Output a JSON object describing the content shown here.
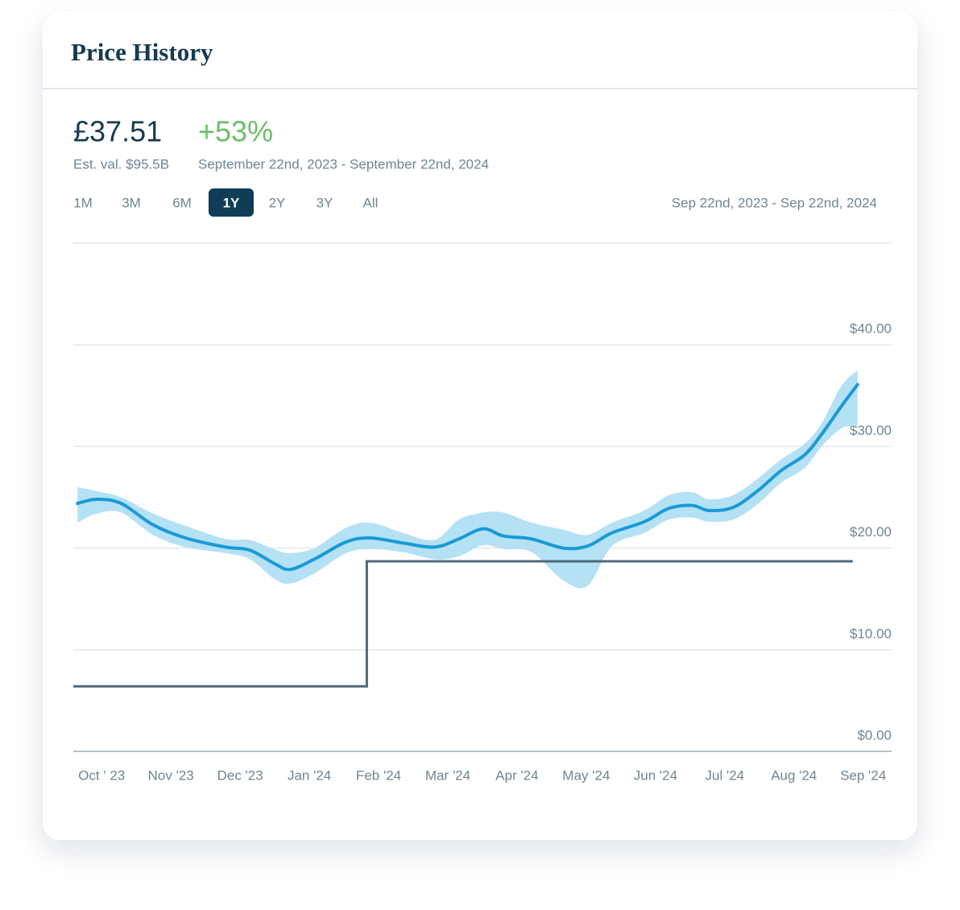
{
  "header": {
    "title": "Price History"
  },
  "summary": {
    "price": "£37.51",
    "change": "+53%",
    "estimate": "Est. val. $95.5B",
    "period": "September 22nd, 2023 - September 22nd, 2024"
  },
  "range_buttons": [
    "1M",
    "3M",
    "6M",
    "1Y",
    "2Y",
    "3Y",
    "All"
  ],
  "active_button": 3,
  "range_label": "Sep 22nd, 2023 - Sep 22nd, 2024",
  "chart_data": {
    "type": "line",
    "xlim": [
      -0.41,
      11.41
    ],
    "xticks": [
      {
        "value": 0,
        "label": "Oct ' 23"
      },
      {
        "value": 1,
        "label": "Nov '23"
      },
      {
        "value": 2,
        "label": "Dec '23"
      },
      {
        "value": 3,
        "label": "Jan '24"
      },
      {
        "value": 4,
        "label": "Feb '24"
      },
      {
        "value": 5,
        "label": "Mar '24"
      },
      {
        "value": 6,
        "label": "Apr '24"
      },
      {
        "value": 7,
        "label": "May '24"
      },
      {
        "value": 8,
        "label": "Jun '24"
      },
      {
        "value": 9,
        "label": "Jul '24"
      },
      {
        "value": 10,
        "label": "Aug '24"
      },
      {
        "value": 11,
        "label": "Sep '24"
      }
    ],
    "ylim": [
      0,
      50
    ],
    "yticks": [
      {
        "value": 0,
        "label": "$0.00"
      },
      {
        "value": 10,
        "label": "$10.00"
      },
      {
        "value": 20,
        "label": "$20.00"
      },
      {
        "value": 30,
        "label": "$30.00"
      },
      {
        "value": 40,
        "label": "$40.00"
      }
    ],
    "grid": true,
    "series": [
      {
        "type": "band",
        "color": "#b5e1f5",
        "x": [
          -0.35,
          -0.07,
          0.28,
          0.74,
          1.21,
          1.79,
          2.14,
          2.49,
          2.72,
          3.07,
          3.53,
          3.88,
          4.35,
          4.81,
          5.16,
          5.51,
          5.8,
          6.21,
          6.67,
          7.02,
          7.37,
          7.84,
          8.19,
          8.53,
          8.77,
          9.12,
          9.47,
          9.81,
          10.16,
          10.4,
          10.69,
          10.92
        ],
        "upper": [
          26.0,
          25.6,
          25.0,
          23.4,
          22.2,
          20.9,
          20.8,
          19.9,
          19.5,
          20.0,
          22.0,
          22.5,
          21.5,
          20.8,
          22.8,
          23.5,
          23.5,
          22.5,
          21.8,
          21.3,
          22.5,
          23.7,
          25.2,
          25.5,
          24.8,
          25.2,
          26.8,
          28.7,
          30.3,
          32.3,
          36.0,
          37.5
        ],
        "lower": [
          22.5,
          23.4,
          23.5,
          21.3,
          20.1,
          19.5,
          18.9,
          17.0,
          16.5,
          17.5,
          19.5,
          19.9,
          19.6,
          18.9,
          19.2,
          20.3,
          19.9,
          19.6,
          16.8,
          16.3,
          20.2,
          21.5,
          22.8,
          23.0,
          22.6,
          22.8,
          24.3,
          26.4,
          27.9,
          30.0,
          31.8,
          32.0
        ]
      },
      {
        "type": "line",
        "color": "#1a9ad6",
        "x": [
          -0.35,
          -0.07,
          0.28,
          0.74,
          1.21,
          1.79,
          2.14,
          2.49,
          2.72,
          3.07,
          3.53,
          3.88,
          4.35,
          4.81,
          5.16,
          5.51,
          5.8,
          6.21,
          6.67,
          7.02,
          7.37,
          7.84,
          8.19,
          8.53,
          8.77,
          9.12,
          9.47,
          9.81,
          10.16,
          10.4,
          10.69,
          10.92
        ],
        "values": [
          24.4,
          24.8,
          24.4,
          22.3,
          21.0,
          20.1,
          19.8,
          18.5,
          17.9,
          18.9,
          20.6,
          21.0,
          20.5,
          20.1,
          20.9,
          21.9,
          21.2,
          20.9,
          20.0,
          20.2,
          21.5,
          22.6,
          23.9,
          24.2,
          23.7,
          24.0,
          25.6,
          27.6,
          29.2,
          31.2,
          34.0,
          36.1
        ]
      },
      {
        "type": "step",
        "color": "#4d6b7d",
        "x": [
          -0.41,
          3.83,
          3.83,
          10.85
        ],
        "values": [
          6.4,
          6.4,
          18.7,
          18.7
        ]
      }
    ]
  }
}
